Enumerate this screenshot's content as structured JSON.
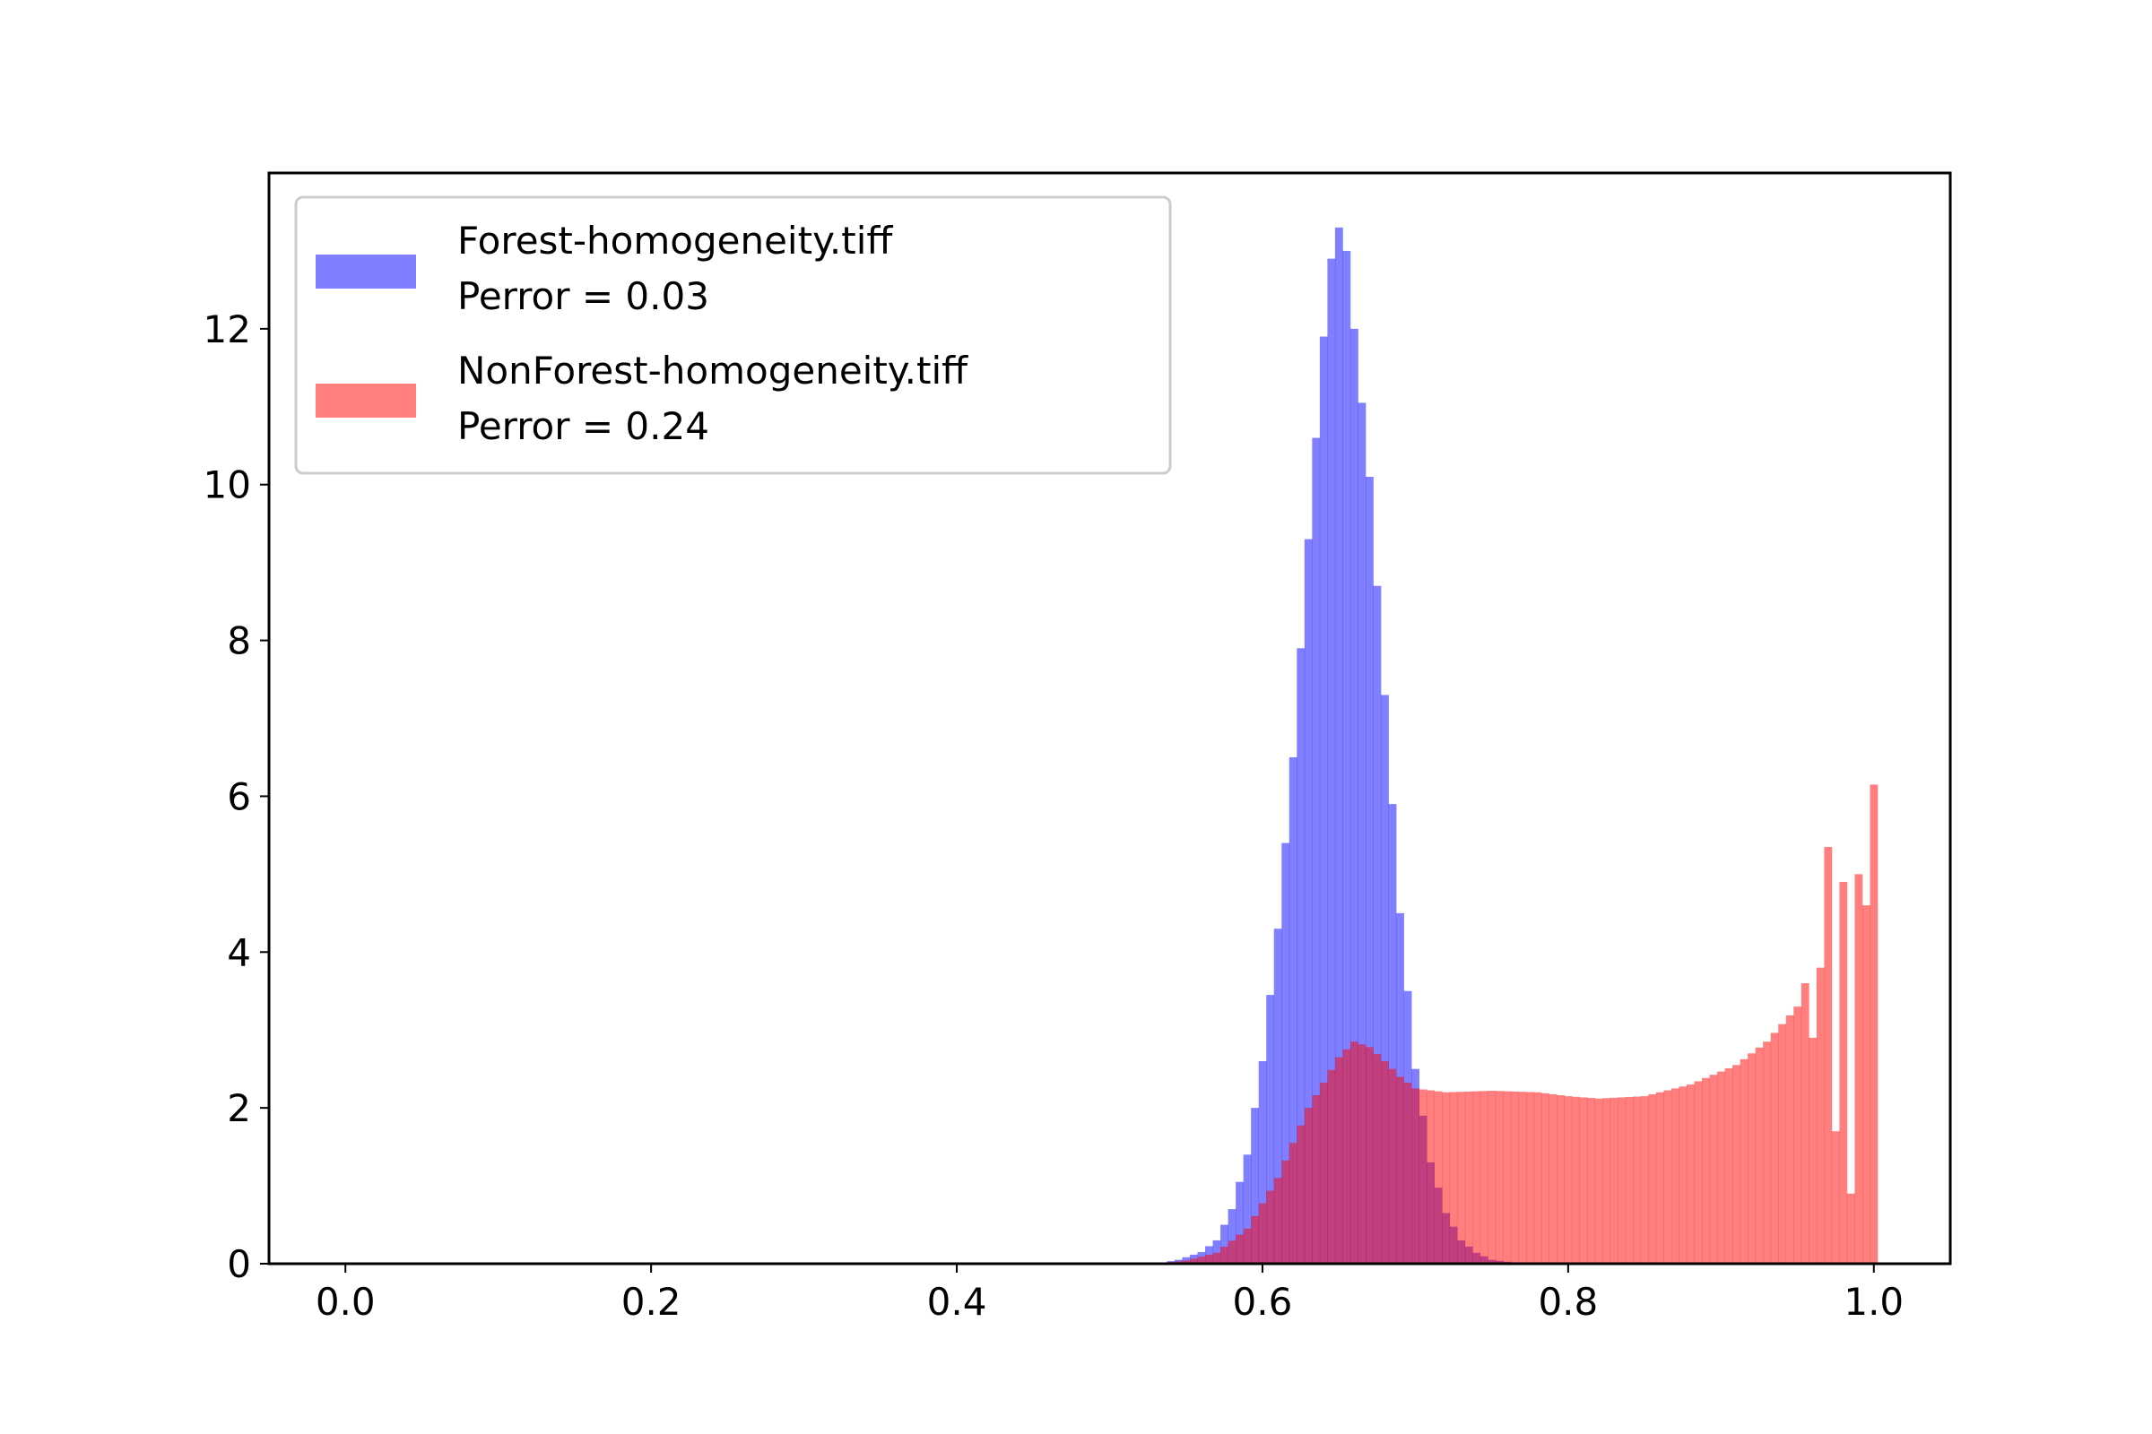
{
  "chart_data": {
    "type": "bar",
    "title": "",
    "xlabel": "",
    "ylabel": "",
    "xlim": [
      -0.05,
      1.05
    ],
    "ylim": [
      0,
      14.0
    ],
    "x_ticks": [
      "0.0",
      "0.2",
      "0.4",
      "0.6",
      "0.8",
      "1.0"
    ],
    "y_ticks": [
      "0",
      "2",
      "4",
      "6",
      "8",
      "10",
      "12"
    ],
    "grid": false,
    "legend_position": "top-left",
    "bin_width": 0.005,
    "series": [
      {
        "name": "Forest-homogeneity.tiff",
        "annotation": "Perror = 0.03",
        "color": "#0000ff",
        "opacity": 0.5,
        "profile": [
          [
            0.53,
            0.0
          ],
          [
            0.545,
            0.05
          ],
          [
            0.56,
            0.15
          ],
          [
            0.57,
            0.3
          ],
          [
            0.58,
            0.7
          ],
          [
            0.59,
            1.4
          ],
          [
            0.6,
            2.6
          ],
          [
            0.61,
            4.3
          ],
          [
            0.62,
            6.5
          ],
          [
            0.63,
            9.3
          ],
          [
            0.64,
            11.9
          ],
          [
            0.645,
            12.9
          ],
          [
            0.65,
            13.3
          ],
          [
            0.655,
            13.0
          ],
          [
            0.66,
            12.0
          ],
          [
            0.67,
            10.1
          ],
          [
            0.68,
            7.3
          ],
          [
            0.69,
            4.5
          ],
          [
            0.7,
            2.5
          ],
          [
            0.71,
            1.3
          ],
          [
            0.72,
            0.65
          ],
          [
            0.73,
            0.3
          ],
          [
            0.74,
            0.14
          ],
          [
            0.75,
            0.05
          ],
          [
            0.77,
            0.0
          ]
        ]
      },
      {
        "name": "NonForest-homogeneity.tiff",
        "annotation": "Perror = 0.24",
        "color": "#ff0000",
        "opacity": 0.5,
        "profile": [
          [
            0.53,
            0.0
          ],
          [
            0.55,
            0.04
          ],
          [
            0.57,
            0.14
          ],
          [
            0.59,
            0.45
          ],
          [
            0.61,
            1.1
          ],
          [
            0.63,
            2.0
          ],
          [
            0.65,
            2.65
          ],
          [
            0.66,
            2.85
          ],
          [
            0.67,
            2.78
          ],
          [
            0.68,
            2.6
          ],
          [
            0.69,
            2.4
          ],
          [
            0.7,
            2.25
          ],
          [
            0.72,
            2.2
          ],
          [
            0.75,
            2.22
          ],
          [
            0.78,
            2.2
          ],
          [
            0.8,
            2.15
          ],
          [
            0.82,
            2.12
          ],
          [
            0.85,
            2.15
          ],
          [
            0.88,
            2.3
          ],
          [
            0.91,
            2.55
          ],
          [
            0.93,
            2.85
          ],
          [
            0.95,
            3.3
          ],
          [
            0.97,
            4.2
          ],
          [
            0.985,
            5.0
          ],
          [
            1.0,
            5.2
          ]
        ],
        "spikes": [
          [
            0.955,
            3.6
          ],
          [
            0.96,
            2.9
          ],
          [
            0.965,
            3.8
          ],
          [
            0.97,
            5.35
          ],
          [
            0.975,
            1.7
          ],
          [
            0.98,
            4.9
          ],
          [
            0.985,
            0.9
          ],
          [
            0.99,
            5.0
          ],
          [
            0.995,
            4.6
          ],
          [
            1.0,
            6.15
          ]
        ]
      }
    ]
  }
}
